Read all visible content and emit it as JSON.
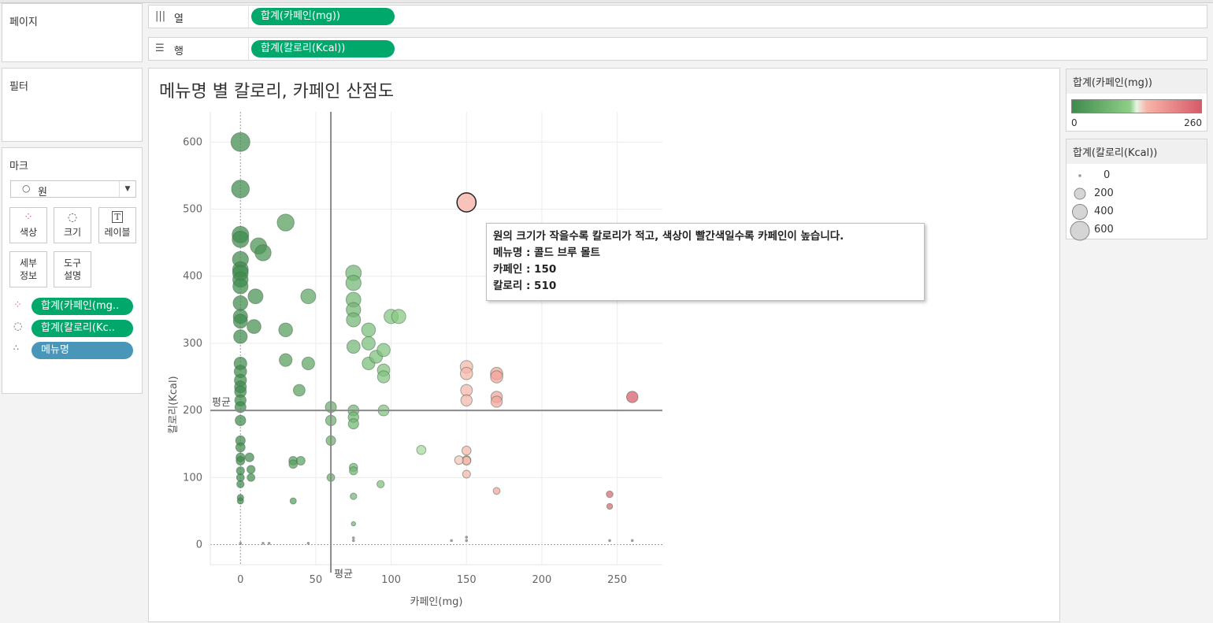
{
  "pages": {
    "title": "페이지"
  },
  "columns_shelf": {
    "label": "열",
    "pill": "합계(카페인(mg))"
  },
  "rows_shelf": {
    "label": "행",
    "pill": "합계(칼로리(Kcal))"
  },
  "filters": {
    "title": "필터"
  },
  "marks": {
    "title": "마크",
    "type_label": "원",
    "buttons": {
      "color": "색상",
      "size": "크기",
      "label": "레이블",
      "detail_1": "세부",
      "detail_2": "정보",
      "tooltip_1": "도구",
      "tooltip_2": "설명"
    },
    "fields": [
      "합계(카페인(mg..",
      "합계(칼로리(Kc..",
      "메뉴명"
    ]
  },
  "color_legend": {
    "title": "합계(카페인(mg))",
    "min": "0",
    "max": "260",
    "colors": [
      "#3f8a4c",
      "#8fcf88",
      "#e8f4e4",
      "#f8b3a8",
      "#d65a6a"
    ]
  },
  "size_legend": {
    "title": "합계(칼로리(Kcal))",
    "items": [
      "0",
      "200",
      "400",
      "600"
    ]
  },
  "tooltip": {
    "line1": "원의 크기가 작을수록 칼로리가 적고, 색상이 빨간색일수록 카페인이 높습니다.",
    "line2": "메뉴명 : 콜드 브루 몰트",
    "line3": "카페인 : 150",
    "line4": "칼로리 : 510"
  },
  "chart_data": {
    "type": "scatter",
    "title": "메뉴명 별 칼로리, 카페인 산점도",
    "xlabel": "카페인(mg)",
    "ylabel": "칼로리(Kcal)",
    "xlim": [
      -20,
      280
    ],
    "ylim": [
      -30,
      645
    ],
    "xticks": [
      "0",
      "50",
      "100",
      "150",
      "200",
      "250"
    ],
    "yticks": [
      "0",
      "100",
      "200",
      "300",
      "400",
      "500",
      "600"
    ],
    "reference_lines": {
      "x": 60,
      "y": 200,
      "label": "평균"
    },
    "grid": true,
    "highlighted": {
      "x": 150,
      "y": 510
    },
    "points": [
      [
        0,
        600
      ],
      [
        0,
        530
      ],
      [
        0,
        462
      ],
      [
        0,
        455
      ],
      [
        0,
        425
      ],
      [
        0,
        410
      ],
      [
        0,
        405
      ],
      [
        0,
        395
      ],
      [
        0,
        385
      ],
      [
        0,
        360
      ],
      [
        0,
        340
      ],
      [
        0,
        333
      ],
      [
        0,
        310
      ],
      [
        0,
        270
      ],
      [
        0,
        258
      ],
      [
        0,
        245
      ],
      [
        0,
        235
      ],
      [
        0,
        228
      ],
      [
        0,
        215
      ],
      [
        0,
        205
      ],
      [
        0,
        185
      ],
      [
        0,
        155
      ],
      [
        0,
        145
      ],
      [
        0,
        130
      ],
      [
        0,
        125
      ],
      [
        0,
        110
      ],
      [
        0,
        100
      ],
      [
        0,
        90
      ],
      [
        0,
        70
      ],
      [
        0,
        65
      ],
      [
        0,
        2
      ],
      [
        12,
        445
      ],
      [
        15,
        435
      ],
      [
        10,
        370
      ],
      [
        9,
        325
      ],
      [
        6,
        130
      ],
      [
        7,
        112
      ],
      [
        7,
        100
      ],
      [
        15,
        2
      ],
      [
        19,
        2
      ],
      [
        30,
        480
      ],
      [
        30,
        275
      ],
      [
        30,
        320
      ],
      [
        45,
        370
      ],
      [
        45,
        270
      ],
      [
        39,
        230
      ],
      [
        35,
        125
      ],
      [
        35,
        120
      ],
      [
        40,
        125
      ],
      [
        35,
        65
      ],
      [
        45,
        2
      ],
      [
        75,
        405
      ],
      [
        75,
        390
      ],
      [
        75,
        365
      ],
      [
        75,
        350
      ],
      [
        75,
        335
      ],
      [
        75,
        295
      ],
      [
        75,
        200
      ],
      [
        75,
        190
      ],
      [
        75,
        180
      ],
      [
        60,
        205
      ],
      [
        60,
        185
      ],
      [
        60,
        155
      ],
      [
        60,
        100
      ],
      [
        75,
        115
      ],
      [
        75,
        110
      ],
      [
        75,
        72
      ],
      [
        75,
        31
      ],
      [
        75,
        10
      ],
      [
        75,
        6
      ],
      [
        85,
        320
      ],
      [
        85,
        300
      ],
      [
        85,
        270
      ],
      [
        90,
        280
      ],
      [
        95,
        290
      ],
      [
        95,
        260
      ],
      [
        95,
        250
      ],
      [
        95,
        200
      ],
      [
        93,
        90
      ],
      [
        100,
        340
      ],
      [
        105,
        340
      ],
      [
        120,
        141
      ],
      [
        140,
        6
      ],
      [
        150,
        265
      ],
      [
        150,
        255
      ],
      [
        150,
        230
      ],
      [
        150,
        215
      ],
      [
        150,
        140
      ],
      [
        150,
        126
      ],
      [
        150,
        125
      ],
      [
        145,
        126
      ],
      [
        150,
        105
      ],
      [
        150,
        11
      ],
      [
        150,
        6
      ],
      [
        170,
        255
      ],
      [
        170,
        250
      ],
      [
        170,
        220
      ],
      [
        170,
        213
      ],
      [
        170,
        80
      ],
      [
        245,
        75
      ],
      [
        245,
        57
      ],
      [
        245,
        6
      ],
      [
        260,
        220
      ],
      [
        260,
        6
      ]
    ]
  }
}
